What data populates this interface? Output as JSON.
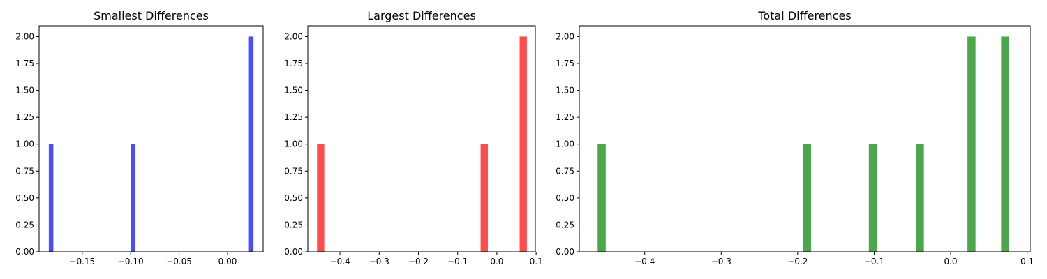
{
  "chart_data": [
    {
      "type": "bar",
      "title": "Smallest Differences",
      "xlabel": "",
      "ylabel": "",
      "color": "#0000ff",
      "xlim": [
        -0.1945,
        0.0367
      ],
      "ylim": [
        0,
        2.1
      ],
      "grid": false,
      "bars": [
        {
          "x_start": -0.1845,
          "x_end": -0.1798,
          "value": 1
        },
        {
          "x_start": -0.1001,
          "x_end": -0.0954,
          "value": 1
        },
        {
          "x_start": 0.022,
          "x_end": 0.0267,
          "value": 2
        }
      ],
      "x_ticks": [
        {
          "value": -0.15,
          "label": "−0.15"
        },
        {
          "value": -0.1,
          "label": "−0.10"
        },
        {
          "value": -0.05,
          "label": "−0.05"
        },
        {
          "value": 0.0,
          "label": "0.00"
        }
      ],
      "y_ticks": [
        {
          "value": 0.0,
          "label": "0.00"
        },
        {
          "value": 0.25,
          "label": "0.25"
        },
        {
          "value": 0.5,
          "label": "0.50"
        },
        {
          "value": 0.75,
          "label": "0.75"
        },
        {
          "value": 1.0,
          "label": "1.00"
        },
        {
          "value": 1.25,
          "label": "1.25"
        },
        {
          "value": 1.5,
          "label": "1.50"
        },
        {
          "value": 1.75,
          "label": "1.75"
        },
        {
          "value": 2.0,
          "label": "2.00"
        }
      ]
    },
    {
      "type": "bar",
      "title": "Largest Differences",
      "xlabel": "",
      "ylabel": "",
      "color": "#ff0000",
      "xlim": [
        -0.482,
        0.098
      ],
      "ylim": [
        0,
        2.1
      ],
      "grid": false,
      "bars": [
        {
          "x_start": -0.4585,
          "x_end": -0.44,
          "value": 1
        },
        {
          "x_start": -0.0415,
          "x_end": -0.023,
          "value": 1
        },
        {
          "x_start": 0.058,
          "x_end": 0.0765,
          "value": 2
        }
      ],
      "x_ticks": [
        {
          "value": -0.4,
          "label": "−0.4"
        },
        {
          "value": -0.3,
          "label": "−0.3"
        },
        {
          "value": -0.2,
          "label": "−0.2"
        },
        {
          "value": -0.1,
          "label": "−0.1"
        },
        {
          "value": 0.0,
          "label": "0.0"
        },
        {
          "value": 0.1,
          "label": "0.1"
        }
      ],
      "y_ticks": [
        {
          "value": 0.0,
          "label": "0.00"
        },
        {
          "value": 0.25,
          "label": "0.25"
        },
        {
          "value": 0.5,
          "label": "0.50"
        },
        {
          "value": 0.75,
          "label": "0.75"
        },
        {
          "value": 1.0,
          "label": "1.00"
        },
        {
          "value": 1.25,
          "label": "1.25"
        },
        {
          "value": 1.5,
          "label": "1.50"
        },
        {
          "value": 1.75,
          "label": "1.75"
        },
        {
          "value": 2.0,
          "label": "2.00"
        }
      ]
    },
    {
      "type": "bar",
      "title": "Total Differences",
      "xlabel": "",
      "ylabel": "",
      "color": "#008000",
      "xlim": [
        -0.4855,
        0.104
      ],
      "ylim": [
        0,
        2.1
      ],
      "grid": false,
      "bars": [
        {
          "x_start": -0.4615,
          "x_end": -0.451,
          "value": 1
        },
        {
          "x_start": -0.193,
          "x_end": -0.1825,
          "value": 1
        },
        {
          "x_start": -0.107,
          "x_end": -0.0965,
          "value": 1
        },
        {
          "x_start": -0.0455,
          "x_end": -0.035,
          "value": 1
        },
        {
          "x_start": 0.022,
          "x_end": 0.0325,
          "value": 2
        },
        {
          "x_start": 0.066,
          "x_end": 0.0765,
          "value": 2
        }
      ],
      "x_ticks": [
        {
          "value": -0.4,
          "label": "−0.4"
        },
        {
          "value": -0.3,
          "label": "−0.3"
        },
        {
          "value": -0.2,
          "label": "−0.2"
        },
        {
          "value": -0.1,
          "label": "−0.1"
        },
        {
          "value": 0.0,
          "label": "0.0"
        },
        {
          "value": 0.1,
          "label": "0.1"
        }
      ],
      "y_ticks": [
        {
          "value": 0.0,
          "label": "0.00"
        },
        {
          "value": 0.25,
          "label": "0.25"
        },
        {
          "value": 0.5,
          "label": "0.50"
        },
        {
          "value": 0.75,
          "label": "0.75"
        },
        {
          "value": 1.0,
          "label": "1.00"
        },
        {
          "value": 1.25,
          "label": "1.25"
        },
        {
          "value": 1.5,
          "label": "1.50"
        },
        {
          "value": 1.75,
          "label": "1.75"
        },
        {
          "value": 2.0,
          "label": "2.00"
        }
      ]
    }
  ]
}
